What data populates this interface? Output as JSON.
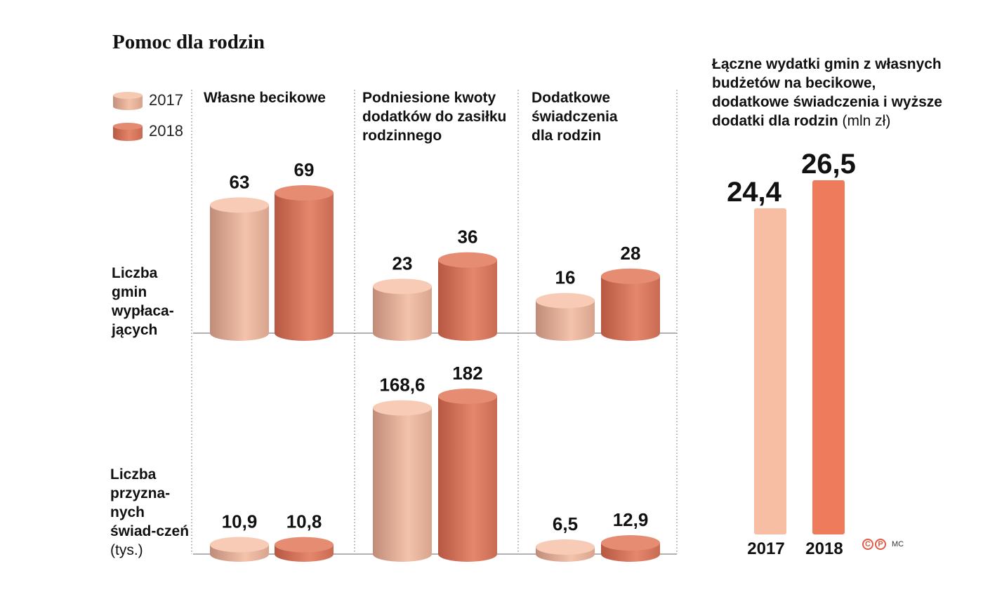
{
  "title": "Pomoc dla rodzin",
  "legend": [
    {
      "label": "2017",
      "color": "#f2b8a0"
    },
    {
      "label": "2018",
      "color": "#e07a5f"
    }
  ],
  "columns": [
    {
      "label": "Własne becikowe"
    },
    {
      "label": "Podniesione kwoty dodatków do zasiłku rodzinnego"
    },
    {
      "label": "Dodatkowe świadczenia dla rodzin"
    }
  ],
  "rows": [
    {
      "label": "Liczba gmin wypłaca-jących",
      "unit": ""
    },
    {
      "label": "Liczba przyzna-nych świad-czeń",
      "unit": "(tys.)"
    }
  ],
  "right_panel": {
    "title": "Łączne wydatki gmin z własnych budżetów na becikowe, dodatkowe świadczenia i wyższe dodatki dla rodzin",
    "unit": "(mln zł)"
  },
  "credit": {
    "icons": [
      "copyright-icon",
      "p-icon"
    ],
    "copyright_letter": "C",
    "p_letter": "P",
    "author": "MC"
  },
  "chart_data": [
    {
      "type": "bar",
      "title": "",
      "categories": [
        "Własne becikowe",
        "Podniesione kwoty dodatków do zasiłku rodzinnego",
        "Dodatkowe świadczenia dla rodzin"
      ],
      "ylabel": "Liczba gmin wypłacających",
      "series": [
        {
          "name": "2017",
          "values": [
            63,
            23,
            16
          ],
          "labels": [
            "63",
            "23",
            "16"
          ]
        },
        {
          "name": "2018",
          "values": [
            69,
            36,
            28
          ],
          "labels": [
            "69",
            "36",
            "28"
          ]
        }
      ]
    },
    {
      "type": "bar",
      "title": "",
      "categories": [
        "Własne becikowe",
        "Podniesione kwoty dodatków do zasiłku rodzinnego",
        "Dodatkowe świadczenia dla rodzin"
      ],
      "ylabel": "Liczba przyznanych świadczeń (tys.)",
      "series": [
        {
          "name": "2017",
          "values": [
            10.9,
            168.6,
            6.5
          ],
          "labels": [
            "10,9",
            "168,6",
            "6,5"
          ]
        },
        {
          "name": "2018",
          "values": [
            10.8,
            182,
            12.9
          ],
          "labels": [
            "10,8",
            "182",
            "12,9"
          ]
        }
      ]
    },
    {
      "type": "bar",
      "title": "",
      "categories": [
        "2017",
        "2018"
      ],
      "ylabel": "mln zł",
      "values": [
        24.4,
        26.5
      ],
      "labels": [
        "24,4",
        "26,5"
      ]
    }
  ]
}
